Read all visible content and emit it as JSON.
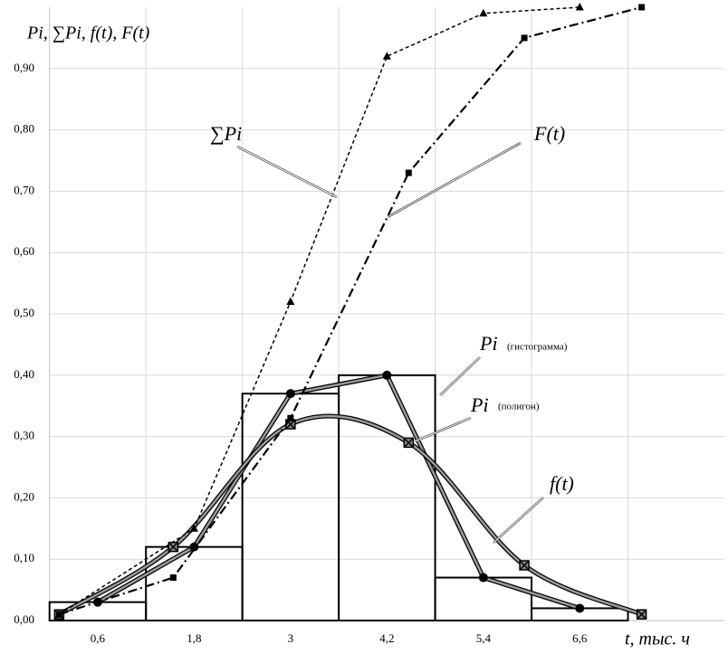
{
  "chart_data": {
    "type": "histogram",
    "y_label": "Pi,  ∑Pi, f(t), F(t)",
    "x_label": "t, тыс. ч",
    "bins": [
      0,
      1.2,
      2.4,
      3.6,
      4.8,
      6.0,
      7.2
    ],
    "counts": [
      0.03,
      0.12,
      0.37,
      0.4,
      0.07,
      0.02
    ],
    "color": "#000000",
    "xlim": [
      0,
      8.4
    ],
    "ylim": [
      0,
      1.0
    ],
    "xticks": [
      {
        "value": 0.6,
        "label": "0,6"
      },
      {
        "value": 1.8,
        "label": "1,8"
      },
      3,
      {
        "value": 4.2,
        "label": "4,2"
      },
      {
        "value": 5.4,
        "label": "5,4"
      },
      {
        "value": 6.6,
        "label": "6,6"
      }
    ],
    "yticks": [
      {
        "value": 0,
        "label": "0,00"
      },
      {
        "value": 0.1,
        "label": "0,10"
      },
      {
        "value": 0.2,
        "label": "0,20"
      },
      {
        "value": 0.3,
        "label": "0,30"
      },
      {
        "value": 0.4,
        "label": "0,40"
      },
      {
        "value": 0.5,
        "label": "0,50"
      },
      {
        "value": 0.6,
        "label": "0,60"
      },
      {
        "value": 0.7,
        "label": "0,70"
      },
      {
        "value": 0.8,
        "label": "0,80"
      },
      {
        "value": 0.9,
        "label": "0,90"
      }
    ],
    "grid": true,
    "series": [
      {
        "x": [
          0.6,
          1.8,
          3,
          4.2,
          5.4,
          6.6
        ],
        "values": [
          0.03,
          0.12,
          0.37,
          0.4,
          0.07,
          0.02
        ],
        "marker": "circle",
        "style": "double",
        "color": "#000000"
      },
      {
        "x": [
          0.12,
          1.54,
          3.0,
          4.47,
          5.91,
          7.37
        ],
        "values": [
          0.01,
          0.12,
          0.32,
          0.29,
          0.09,
          0.01
        ],
        "marker": "boxx",
        "style": "smooth",
        "color": "#000000"
      },
      {
        "x": [
          0.12,
          1.8,
          3.0,
          4.2,
          5.4,
          6.6
        ],
        "values": [
          0.01,
          0.15,
          0.52,
          0.92,
          0.99,
          1.0
        ],
        "marker": "triangle",
        "style": "dashed",
        "color": "#000000"
      },
      {
        "x": [
          0.12,
          1.54,
          3.0,
          4.47,
          5.91,
          7.37
        ],
        "values": [
          0.01,
          0.07,
          0.33,
          0.73,
          0.95,
          1.0
        ],
        "marker": "square",
        "style": "dashdot",
        "color": "#000000"
      }
    ],
    "annotations": [
      "∑Pi",
      "F(t)",
      "Pi",
      "(гистограмма)",
      "Pi",
      "(полигон)",
      "f(t)"
    ]
  }
}
